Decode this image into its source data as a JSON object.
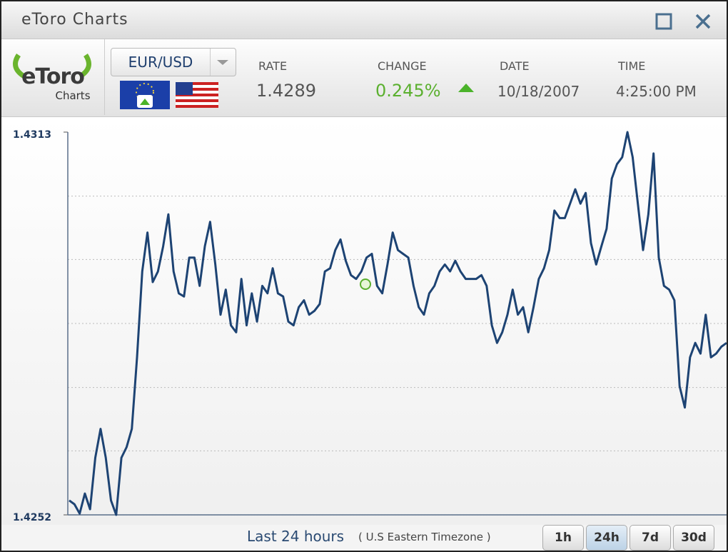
{
  "window": {
    "title": "eToro Charts"
  },
  "header": {
    "logo": "eToro",
    "logo_sub": "Charts",
    "pair": "EUR/USD",
    "fields": [
      {
        "label": "RATE",
        "value": "1.4289"
      },
      {
        "label": "CHANGE",
        "value": "0.245%"
      },
      {
        "label": "DATE",
        "value": "10/18/2007"
      },
      {
        "label": "TIME",
        "value": "4:25:00 PM"
      }
    ]
  },
  "chart_data": {
    "type": "line",
    "ylim": [
      1.4252,
      1.4313
    ],
    "yticks": [
      1.4313,
      1.4252
    ],
    "ygrid": [
      1.42622,
      1.42723,
      1.42825,
      1.42927,
      1.43028
    ],
    "series": [
      {
        "name": "EUR/USD",
        "color": "#1d4373",
        "values": [
          1.42543,
          1.42537,
          1.42522,
          1.42554,
          1.42529,
          1.42611,
          1.42657,
          1.42611,
          1.42543,
          1.4252,
          1.42611,
          1.42628,
          1.42657,
          1.42771,
          1.42908,
          1.4297,
          1.42891,
          1.42908,
          1.42948,
          1.42999,
          1.42908,
          1.42873,
          1.42868,
          1.4293,
          1.4293,
          1.42885,
          1.42948,
          1.42987,
          1.42919,
          1.42839,
          1.42879,
          1.42822,
          1.42811,
          1.42896,
          1.42822,
          1.42873,
          1.42828,
          1.42885,
          1.42873,
          1.42913,
          1.42873,
          1.42868,
          1.42828,
          1.42822,
          1.42851,
          1.42862,
          1.42839,
          1.42845,
          1.42856,
          1.42908,
          1.42913,
          1.42942,
          1.42959,
          1.42925,
          1.42902,
          1.42896,
          1.42908,
          1.4293,
          1.42936,
          1.42885,
          1.42873,
          1.42919,
          1.4297,
          1.42942,
          1.42936,
          1.4293,
          1.42885,
          1.42851,
          1.42839,
          1.42873,
          1.42885,
          1.42908,
          1.42919,
          1.42908,
          1.42925,
          1.42908,
          1.42896,
          1.42896,
          1.42896,
          1.42902,
          1.42885,
          1.42822,
          1.42794,
          1.42811,
          1.42839,
          1.42879,
          1.42839,
          1.42851,
          1.42811,
          1.42851,
          1.42896,
          1.42913,
          1.42942,
          1.43005,
          1.42993,
          1.42993,
          1.43016,
          1.43039,
          1.43016,
          1.43033,
          1.42953,
          1.42919,
          1.42948,
          1.42976,
          1.43056,
          1.43079,
          1.4309,
          1.4313,
          1.4309,
          1.43016,
          1.42942,
          1.42999,
          1.43096,
          1.4293,
          1.42885,
          1.42879,
          1.42862,
          1.42725,
          1.42691,
          1.42771,
          1.42794,
          1.42777,
          1.42839,
          1.42771,
          1.42777,
          1.42788,
          1.42794
        ]
      }
    ]
  },
  "footer": {
    "period": "Last 24 hours",
    "timezone": "( U.S Eastern Timezone )",
    "buttons": [
      {
        "label": "1h"
      },
      {
        "label": "24h",
        "active": true
      },
      {
        "label": "7d"
      },
      {
        "label": "30d"
      }
    ]
  }
}
